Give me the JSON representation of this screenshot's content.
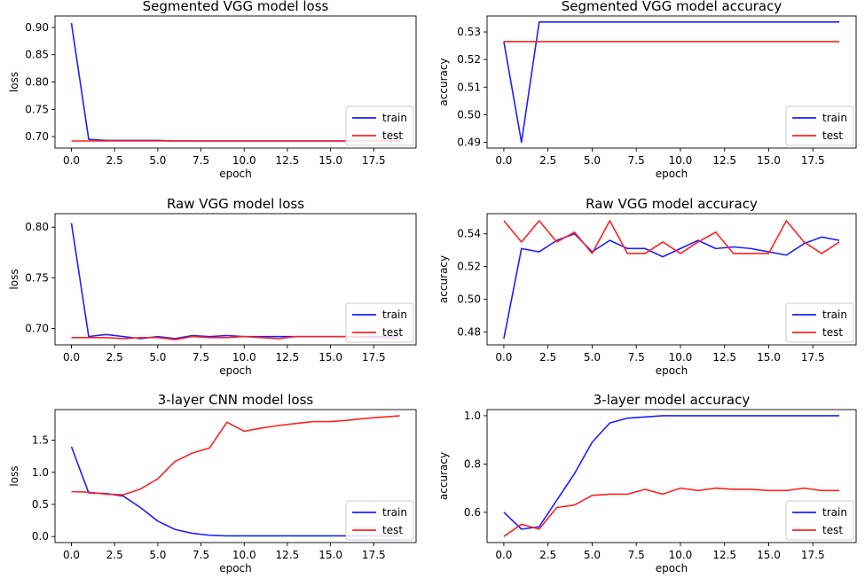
{
  "colors": {
    "train": "#1f1fff",
    "test": "#ff2222"
  },
  "chart_data": [
    {
      "type": "line",
      "title": "Segmented VGG model loss",
      "xlabel": "epoch",
      "ylabel": "loss",
      "xlim": [
        -0.95,
        19.95
      ],
      "ylim": [
        0.679,
        0.921
      ],
      "xticks": [
        0.0,
        2.5,
        5.0,
        7.5,
        10.0,
        12.5,
        15.0,
        17.5
      ],
      "xtick_labels": [
        "0.0",
        "2.5",
        "5.0",
        "7.5",
        "10.0",
        "12.5",
        "15.0",
        "17.5"
      ],
      "yticks": [
        0.7,
        0.75,
        0.8,
        0.85,
        0.9
      ],
      "ytick_labels": [
        "0.70",
        "0.75",
        "0.80",
        "0.85",
        "0.90"
      ],
      "legend": "lower-right",
      "grid": false,
      "x": [
        0,
        1,
        2,
        3,
        4,
        5,
        6,
        7,
        8,
        9,
        10,
        11,
        12,
        13,
        14,
        15,
        16,
        17,
        18,
        19
      ],
      "series": [
        {
          "name": "train",
          "values": [
            0.908,
            0.695,
            0.693,
            0.693,
            0.693,
            0.693,
            0.692,
            0.692,
            0.692,
            0.692,
            0.692,
            0.692,
            0.692,
            0.692,
            0.692,
            0.692,
            0.692,
            0.692,
            0.692,
            0.692
          ]
        },
        {
          "name": "test",
          "values": [
            0.692,
            0.692,
            0.692,
            0.692,
            0.692,
            0.692,
            0.692,
            0.692,
            0.692,
            0.692,
            0.692,
            0.692,
            0.692,
            0.692,
            0.692,
            0.692,
            0.692,
            0.692,
            0.692,
            0.692
          ]
        }
      ]
    },
    {
      "type": "line",
      "title": "Segmented VGG model accuracy",
      "xlabel": "epoch",
      "ylabel": "accuracy",
      "xlim": [
        -0.95,
        19.95
      ],
      "ylim": [
        0.4879,
        0.5358
      ],
      "xticks": [
        0.0,
        2.5,
        5.0,
        7.5,
        10.0,
        12.5,
        15.0,
        17.5
      ],
      "xtick_labels": [
        "0.0",
        "2.5",
        "5.0",
        "7.5",
        "10.0",
        "12.5",
        "15.0",
        "17.5"
      ],
      "yticks": [
        0.49,
        0.5,
        0.51,
        0.52,
        0.53
      ],
      "ytick_labels": [
        "0.49",
        "0.50",
        "0.51",
        "0.52",
        "0.53"
      ],
      "legend": "lower-right",
      "grid": false,
      "x": [
        0,
        1,
        2,
        3,
        4,
        5,
        6,
        7,
        8,
        9,
        10,
        11,
        12,
        13,
        14,
        15,
        16,
        17,
        18,
        19
      ],
      "series": [
        {
          "name": "train",
          "values": [
            0.5265,
            0.49,
            0.5336,
            0.5336,
            0.5336,
            0.5336,
            0.5336,
            0.5336,
            0.5336,
            0.5336,
            0.5336,
            0.5336,
            0.5336,
            0.5336,
            0.5336,
            0.5336,
            0.5336,
            0.5336,
            0.5336,
            0.5336
          ]
        },
        {
          "name": "test",
          "values": [
            0.5265,
            0.5265,
            0.5265,
            0.5265,
            0.5265,
            0.5265,
            0.5265,
            0.5265,
            0.5265,
            0.5265,
            0.5265,
            0.5265,
            0.5265,
            0.5265,
            0.5265,
            0.5265,
            0.5265,
            0.5265,
            0.5265,
            0.5265
          ]
        }
      ]
    },
    {
      "type": "line",
      "title": "Raw VGG model loss",
      "xlabel": "epoch",
      "ylabel": "loss",
      "xlim": [
        -0.95,
        19.95
      ],
      "ylim": [
        0.6838,
        0.8133
      ],
      "xticks": [
        0.0,
        2.5,
        5.0,
        7.5,
        10.0,
        12.5,
        15.0,
        17.5
      ],
      "xtick_labels": [
        "0.0",
        "2.5",
        "5.0",
        "7.5",
        "10.0",
        "12.5",
        "15.0",
        "17.5"
      ],
      "yticks": [
        0.7,
        0.75,
        0.8
      ],
      "ytick_labels": [
        "0.70",
        "0.75",
        "0.80"
      ],
      "legend": "lower-right",
      "grid": false,
      "x": [
        0,
        1,
        2,
        3,
        4,
        5,
        6,
        7,
        8,
        9,
        10,
        11,
        12,
        13,
        14,
        15,
        16,
        17,
        18,
        19
      ],
      "series": [
        {
          "name": "train",
          "values": [
            0.804,
            0.692,
            0.694,
            0.692,
            0.69,
            0.692,
            0.69,
            0.693,
            0.692,
            0.693,
            0.692,
            0.692,
            0.692,
            0.692,
            0.692,
            0.692,
            0.692,
            0.692,
            0.692,
            0.692
          ]
        },
        {
          "name": "test",
          "values": [
            0.691,
            0.691,
            0.691,
            0.69,
            0.691,
            0.691,
            0.689,
            0.692,
            0.691,
            0.691,
            0.692,
            0.691,
            0.69,
            0.692,
            0.692,
            0.692,
            0.692,
            0.691,
            0.691,
            0.69
          ]
        }
      ]
    },
    {
      "type": "line",
      "title": "Raw VGG model accuracy",
      "xlabel": "epoch",
      "ylabel": "accuracy",
      "xlim": [
        -0.95,
        19.95
      ],
      "ylim": [
        0.4722,
        0.5523
      ],
      "xticks": [
        0.0,
        2.5,
        5.0,
        7.5,
        10.0,
        12.5,
        15.0,
        17.5
      ],
      "xtick_labels": [
        "0.0",
        "2.5",
        "5.0",
        "7.5",
        "10.0",
        "12.5",
        "15.0",
        "17.5"
      ],
      "yticks": [
        0.48,
        0.5,
        0.52,
        0.54
      ],
      "ytick_labels": [
        "0.48",
        "0.50",
        "0.52",
        "0.54"
      ],
      "legend": "lower-right",
      "grid": false,
      "x": [
        0,
        1,
        2,
        3,
        4,
        5,
        6,
        7,
        8,
        9,
        10,
        11,
        12,
        13,
        14,
        15,
        16,
        17,
        18,
        19
      ],
      "series": [
        {
          "name": "train",
          "values": [
            0.476,
            0.531,
            0.529,
            0.536,
            0.54,
            0.529,
            0.536,
            0.531,
            0.531,
            0.526,
            0.531,
            0.536,
            0.531,
            0.532,
            0.531,
            0.529,
            0.527,
            0.534,
            0.538,
            0.536
          ]
        },
        {
          "name": "test",
          "values": [
            0.548,
            0.535,
            0.548,
            0.535,
            0.541,
            0.528,
            0.548,
            0.528,
            0.528,
            0.535,
            0.528,
            0.535,
            0.541,
            0.528,
            0.528,
            0.528,
            0.548,
            0.535,
            0.528,
            0.535
          ]
        }
      ]
    },
    {
      "type": "line",
      "title": "3-layer CNN model loss",
      "xlabel": "epoch",
      "ylabel": "loss",
      "xlim": [
        -0.95,
        19.95
      ],
      "ylim": [
        -0.094,
        1.977
      ],
      "xticks": [
        0.0,
        2.5,
        5.0,
        7.5,
        10.0,
        12.5,
        15.0,
        17.5
      ],
      "xtick_labels": [
        "0.0",
        "2.5",
        "5.0",
        "7.5",
        "10.0",
        "12.5",
        "15.0",
        "17.5"
      ],
      "yticks": [
        0.0,
        0.5,
        1.0,
        1.5
      ],
      "ytick_labels": [
        "0.0",
        "0.5",
        "1.0",
        "1.5"
      ],
      "legend": "lower-right",
      "grid": false,
      "x": [
        0,
        1,
        2,
        3,
        4,
        5,
        6,
        7,
        8,
        9,
        10,
        11,
        12,
        13,
        14,
        15,
        16,
        17,
        18,
        19
      ],
      "series": [
        {
          "name": "train",
          "values": [
            1.4,
            0.68,
            0.67,
            0.63,
            0.45,
            0.24,
            0.11,
            0.05,
            0.02,
            0.01,
            0.01,
            0.01,
            0.01,
            0.01,
            0.01,
            0.01,
            0.01,
            0.01,
            0.01,
            0.01
          ]
        },
        {
          "name": "test",
          "values": [
            0.7,
            0.69,
            0.66,
            0.65,
            0.74,
            0.9,
            1.17,
            1.3,
            1.38,
            1.78,
            1.64,
            1.69,
            1.73,
            1.76,
            1.79,
            1.79,
            1.81,
            1.84,
            1.86,
            1.88
          ]
        }
      ]
    },
    {
      "type": "line",
      "title": "3-layer model accuracy",
      "xlabel": "epoch",
      "ylabel": "accuracy",
      "xlim": [
        -0.95,
        19.95
      ],
      "ylim": [
        0.4745,
        1.0255
      ],
      "xticks": [
        0.0,
        2.5,
        5.0,
        7.5,
        10.0,
        12.5,
        15.0,
        17.5
      ],
      "xtick_labels": [
        "0.0",
        "2.5",
        "5.0",
        "7.5",
        "10.0",
        "12.5",
        "15.0",
        "17.5"
      ],
      "yticks": [
        0.6,
        0.8,
        1.0
      ],
      "ytick_labels": [
        "0.6",
        "0.8",
        "1.0"
      ],
      "legend": "lower-right",
      "grid": false,
      "x": [
        0,
        1,
        2,
        3,
        4,
        5,
        6,
        7,
        8,
        9,
        10,
        11,
        12,
        13,
        14,
        15,
        16,
        17,
        18,
        19
      ],
      "series": [
        {
          "name": "train",
          "values": [
            0.6,
            0.53,
            0.54,
            0.65,
            0.76,
            0.89,
            0.97,
            0.99,
            0.995,
            1.0,
            1.0,
            1.0,
            1.0,
            1.0,
            1.0,
            1.0,
            1.0,
            1.0,
            1.0,
            1.0
          ]
        },
        {
          "name": "test",
          "values": [
            0.5,
            0.55,
            0.53,
            0.62,
            0.63,
            0.67,
            0.675,
            0.675,
            0.695,
            0.675,
            0.7,
            0.69,
            0.7,
            0.695,
            0.695,
            0.69,
            0.69,
            0.7,
            0.69,
            0.69
          ]
        }
      ]
    }
  ]
}
